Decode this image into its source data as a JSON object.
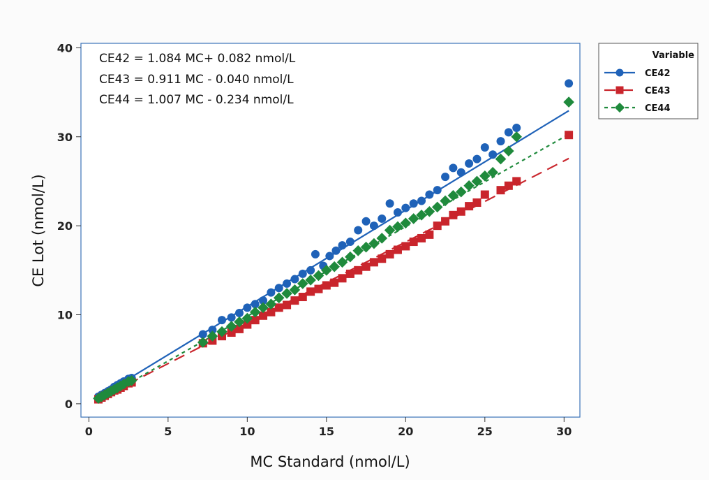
{
  "chart_data": {
    "type": "scatter",
    "title": "",
    "xlabel": "MC Standard (nmol/L)",
    "ylabel": "CE Lot (nmol/L)",
    "xlim": [
      -0.5,
      31.0
    ],
    "ylim": [
      -1.5,
      40.5
    ],
    "xticks": [
      0,
      5,
      10,
      15,
      20,
      25,
      30
    ],
    "yticks": [
      0,
      10,
      20,
      30,
      40
    ],
    "grid": false,
    "legend_position": "right",
    "legend_title": "Variable",
    "annotations": [
      "CE42 = 1.084 MC+ 0.082 nmol/L",
      "CE43 = 0.911 MC - 0.040 nmol/L",
      "CE44 = 1.007 MC - 0.234 nmol/L"
    ],
    "series": [
      {
        "name": "CE42",
        "color": "#1f62b8",
        "marker": "circle",
        "line_style": "solid",
        "fit": {
          "slope": 1.084,
          "intercept": 0.082,
          "x_range": [
            0.5,
            30.3
          ]
        },
        "x": [
          0.6,
          0.8,
          1.0,
          1.2,
          1.4,
          1.6,
          1.8,
          2.0,
          2.2,
          2.5,
          2.7,
          7.2,
          7.8,
          8.4,
          9.0,
          9.5,
          10.0,
          10.5,
          11.0,
          11.5,
          12.0,
          12.5,
          13.0,
          13.5,
          14.0,
          14.3,
          14.8,
          15.2,
          15.6,
          16.0,
          16.5,
          17.0,
          17.5,
          18.0,
          18.5,
          19.0,
          19.5,
          20.0,
          20.5,
          21.0,
          21.5,
          22.0,
          22.5,
          23.0,
          23.5,
          24.0,
          24.5,
          25.0,
          25.5,
          26.0,
          26.5,
          27.0,
          30.3
        ],
        "y": [
          0.8,
          1.0,
          1.2,
          1.4,
          1.6,
          1.9,
          2.1,
          2.3,
          2.5,
          2.8,
          2.9,
          7.8,
          8.3,
          9.4,
          9.7,
          10.2,
          10.8,
          11.2,
          11.6,
          12.5,
          13.0,
          13.5,
          14.0,
          14.6,
          15.0,
          16.8,
          15.5,
          16.6,
          17.2,
          17.8,
          18.2,
          19.5,
          20.5,
          20.0,
          20.8,
          22.5,
          21.5,
          22.0,
          22.5,
          22.8,
          23.5,
          24.0,
          25.5,
          26.5,
          26.0,
          27.0,
          27.5,
          28.8,
          28.0,
          29.5,
          30.5,
          31.0,
          36.0
        ]
      },
      {
        "name": "CE43",
        "color": "#c9252c",
        "marker": "square",
        "line_style": "dashed",
        "fit": {
          "slope": 0.911,
          "intercept": -0.04,
          "x_range": [
            0.5,
            30.3
          ]
        },
        "x": [
          0.6,
          0.8,
          1.0,
          1.2,
          1.4,
          1.6,
          1.8,
          2.0,
          2.2,
          2.5,
          2.7,
          7.2,
          7.8,
          8.4,
          9.0,
          9.5,
          10.0,
          10.5,
          11.0,
          11.5,
          12.0,
          12.5,
          13.0,
          13.5,
          14.0,
          14.5,
          15.0,
          15.5,
          16.0,
          16.5,
          17.0,
          17.5,
          18.0,
          18.5,
          19.0,
          19.5,
          20.0,
          20.5,
          21.0,
          21.5,
          22.0,
          22.5,
          23.0,
          23.5,
          24.0,
          24.5,
          25.0,
          26.0,
          26.5,
          27.0,
          30.3
        ],
        "y": [
          0.5,
          0.7,
          0.9,
          1.1,
          1.3,
          1.5,
          1.6,
          1.8,
          2.0,
          2.3,
          2.4,
          6.8,
          7.1,
          7.6,
          8.0,
          8.4,
          8.9,
          9.4,
          9.9,
          10.3,
          10.8,
          11.1,
          11.6,
          12.0,
          12.6,
          12.9,
          13.3,
          13.6,
          14.1,
          14.6,
          15.0,
          15.4,
          15.9,
          16.3,
          16.8,
          17.3,
          17.7,
          18.2,
          18.6,
          19.0,
          20.0,
          20.5,
          21.2,
          21.6,
          22.2,
          22.6,
          23.5,
          24.0,
          24.5,
          25.0,
          30.2
        ]
      },
      {
        "name": "CE44",
        "color": "#1f8a3c",
        "marker": "diamond",
        "line_style": "dotted",
        "fit": {
          "slope": 1.007,
          "intercept": -0.234,
          "x_range": [
            0.5,
            30.3
          ]
        },
        "x": [
          0.6,
          0.8,
          1.0,
          1.2,
          1.4,
          1.6,
          1.8,
          2.0,
          2.2,
          2.5,
          2.7,
          7.2,
          7.8,
          8.4,
          9.0,
          9.5,
          10.0,
          10.5,
          11.0,
          11.5,
          12.0,
          12.5,
          13.0,
          13.5,
          14.0,
          14.5,
          15.0,
          15.5,
          16.0,
          16.5,
          17.0,
          17.5,
          18.0,
          18.5,
          19.0,
          19.5,
          20.0,
          20.5,
          21.0,
          21.5,
          22.0,
          22.5,
          23.0,
          23.5,
          24.0,
          24.5,
          25.0,
          25.5,
          26.0,
          26.5,
          27.0,
          30.3
        ],
        "y": [
          0.6,
          0.8,
          1.0,
          1.2,
          1.4,
          1.6,
          1.8,
          2.0,
          2.2,
          2.5,
          2.6,
          6.9,
          7.6,
          8.1,
          8.7,
          9.2,
          9.6,
          10.3,
          10.8,
          11.2,
          11.9,
          12.4,
          12.8,
          13.5,
          13.9,
          14.4,
          15.0,
          15.4,
          15.9,
          16.5,
          17.2,
          17.6,
          18.0,
          18.6,
          19.5,
          19.9,
          20.3,
          20.8,
          21.2,
          21.6,
          22.1,
          22.8,
          23.4,
          23.8,
          24.5,
          25.0,
          25.6,
          26.0,
          27.5,
          28.4,
          30.0,
          33.9
        ]
      }
    ]
  }
}
